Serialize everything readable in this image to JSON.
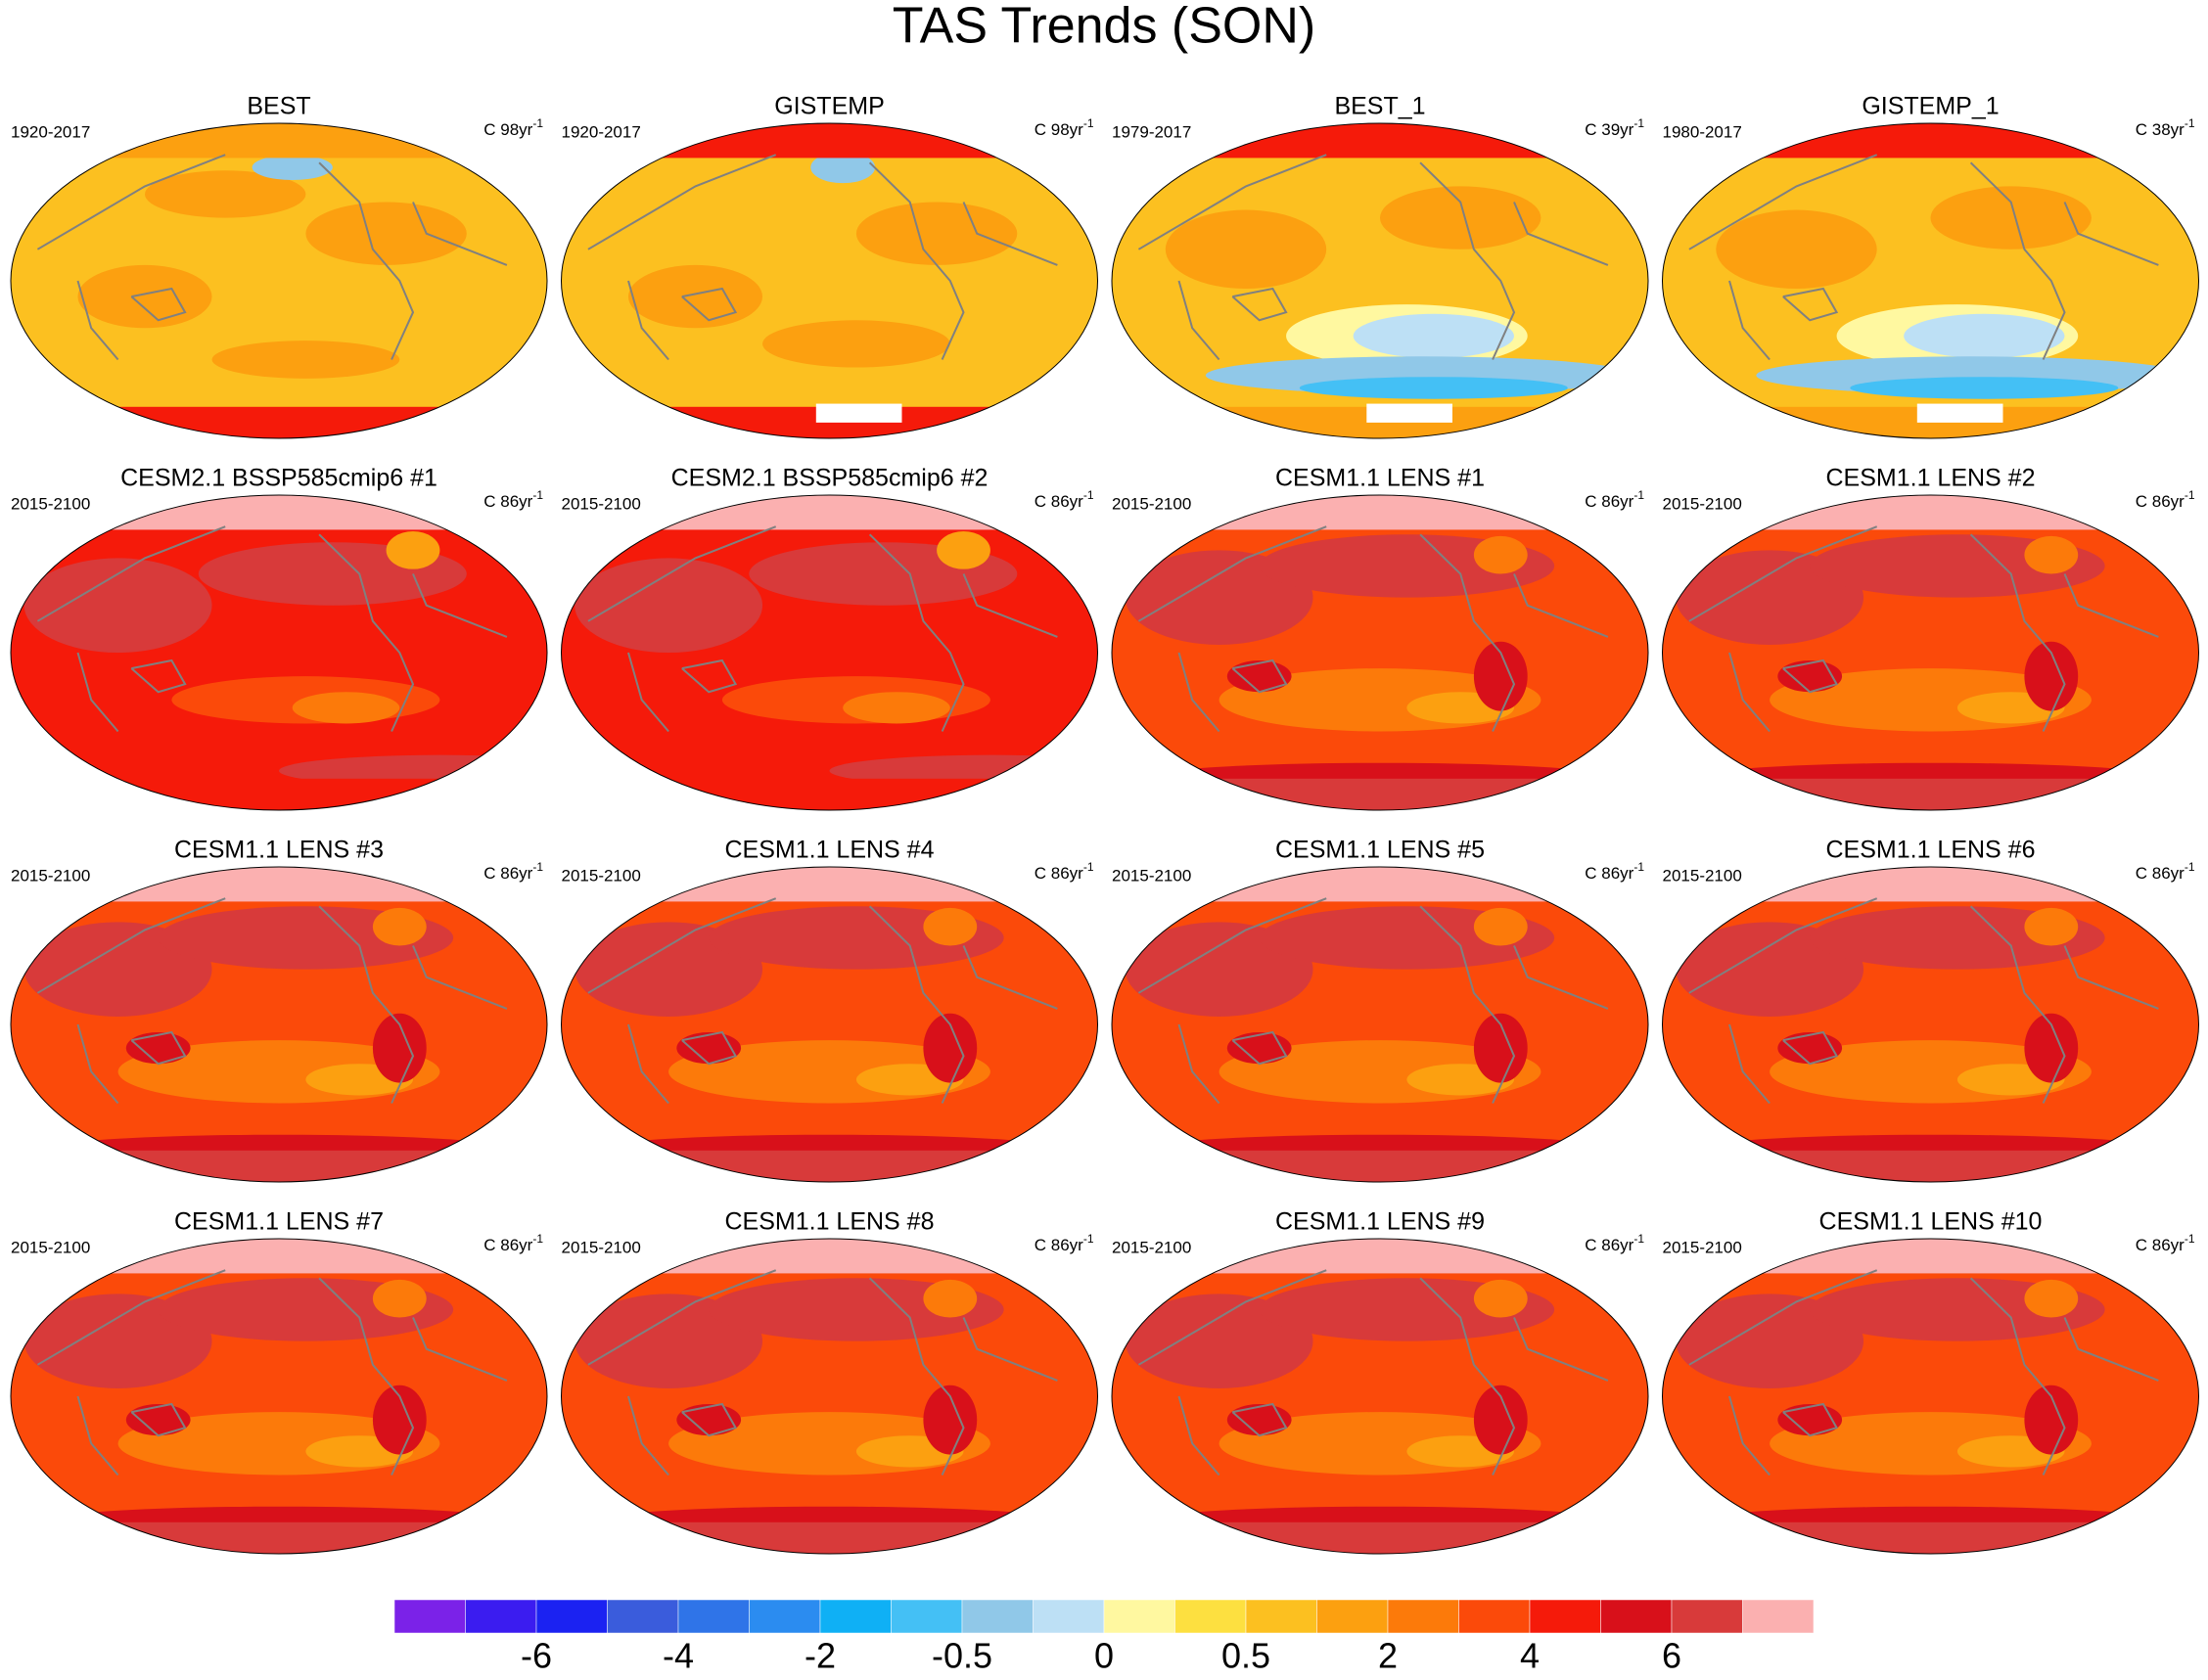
{
  "title": "TAS Trends (SON)",
  "panels": [
    {
      "title": "BEST",
      "period": "1920-2017",
      "units": "C 98yr",
      "exponent": "-1"
    },
    {
      "title": "GISTEMP",
      "period": "1920-2017",
      "units": "C 98yr",
      "exponent": "-1"
    },
    {
      "title": "BEST_1",
      "period": "1979-2017",
      "units": "C 39yr",
      "exponent": "-1"
    },
    {
      "title": "GISTEMP_1",
      "period": "1980-2017",
      "units": "C 38yr",
      "exponent": "-1"
    },
    {
      "title": "CESM2.1 BSSP585cmip6 #1",
      "period": "2015-2100",
      "units": "C 86yr",
      "exponent": "-1"
    },
    {
      "title": "CESM2.1 BSSP585cmip6 #2",
      "period": "2015-2100",
      "units": "C 86yr",
      "exponent": "-1"
    },
    {
      "title": "CESM1.1 LENS #1",
      "period": "2015-2100",
      "units": "C 86yr",
      "exponent": "-1"
    },
    {
      "title": "CESM1.1 LENS #2",
      "period": "2015-2100",
      "units": "C 86yr",
      "exponent": "-1"
    },
    {
      "title": "CESM1.1 LENS #3",
      "period": "2015-2100",
      "units": "C 86yr",
      "exponent": "-1"
    },
    {
      "title": "CESM1.1 LENS #4",
      "period": "2015-2100",
      "units": "C 86yr",
      "exponent": "-1"
    },
    {
      "title": "CESM1.1 LENS #5",
      "period": "2015-2100",
      "units": "C 86yr",
      "exponent": "-1"
    },
    {
      "title": "CESM1.1 LENS #6",
      "period": "2015-2100",
      "units": "C 86yr",
      "exponent": "-1"
    },
    {
      "title": "CESM1.1 LENS #7",
      "period": "2015-2100",
      "units": "C 86yr",
      "exponent": "-1"
    },
    {
      "title": "CESM1.1 LENS #8",
      "period": "2015-2100",
      "units": "C 86yr",
      "exponent": "-1"
    },
    {
      "title": "CESM1.1 LENS #9",
      "period": "2015-2100",
      "units": "C 86yr",
      "exponent": "-1"
    },
    {
      "title": "CESM1.1 LENS #10",
      "period": "2015-2100",
      "units": "C 86yr",
      "exponent": "-1"
    }
  ],
  "colorbar": {
    "colors": [
      "#7b22e8",
      "#3b1cf0",
      "#1b22f2",
      "#3a5cdc",
      "#2f74e8",
      "#2b8cf0",
      "#0fb0f5",
      "#44c0f5",
      "#90c8e8",
      "#bde0f5",
      "#fff8a0",
      "#fde040",
      "#fcc020",
      "#fca010",
      "#fc7a0a",
      "#fb4a0a",
      "#f51a0a",
      "#d8101a",
      "#d83a3a",
      "#fbb0b0"
    ],
    "labels": [
      -6,
      -4,
      -2,
      -0.5,
      0,
      0.5,
      2,
      4,
      6
    ]
  }
}
